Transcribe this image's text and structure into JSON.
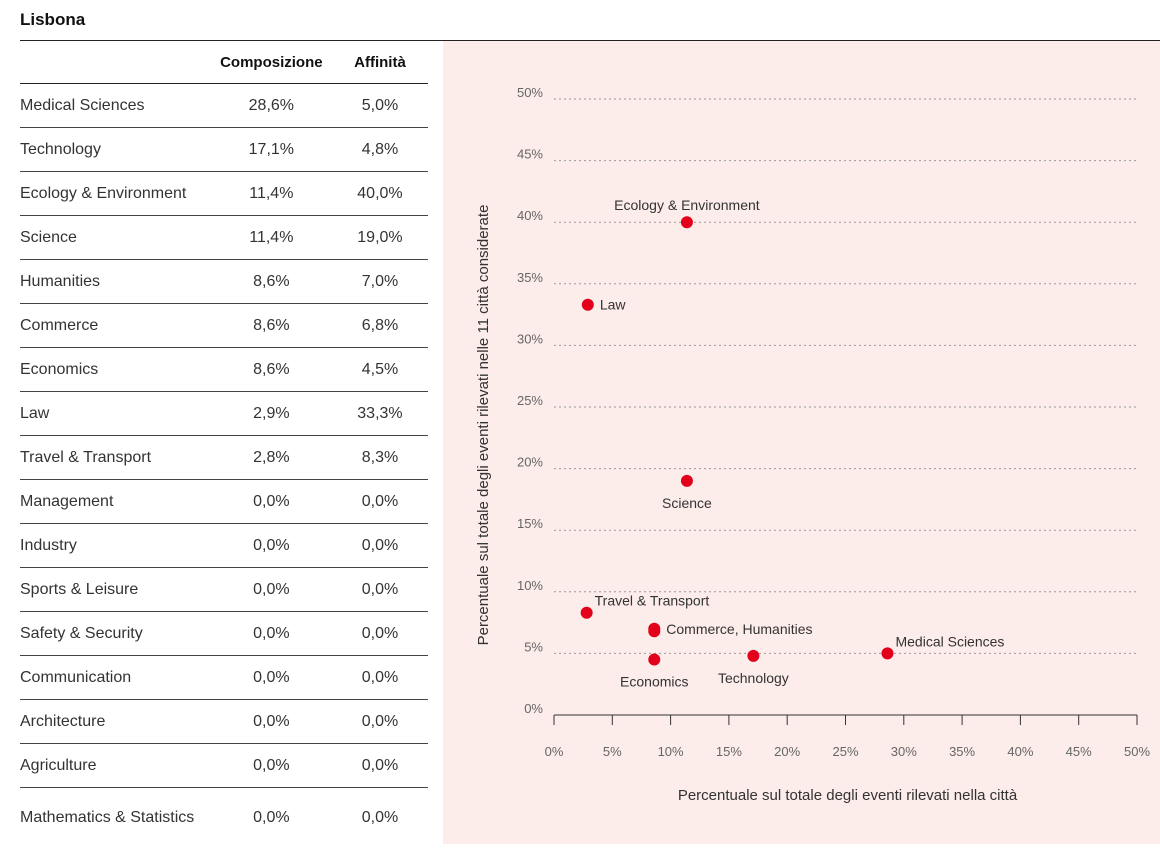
{
  "title": "Lisbona",
  "table": {
    "headers": [
      "",
      "Composizione",
      "Affinità"
    ],
    "rows": [
      {
        "name": "Medical Sciences",
        "composizione": "28,6%",
        "affinita": "5,0%"
      },
      {
        "name": "Technology",
        "composizione": "17,1%",
        "affinita": "4,8%"
      },
      {
        "name": "Ecology & Environment",
        "composizione": "11,4%",
        "affinita": "40,0%"
      },
      {
        "name": "Science",
        "composizione": "11,4%",
        "affinita": "19,0%"
      },
      {
        "name": "Humanities",
        "composizione": "8,6%",
        "affinita": "7,0%"
      },
      {
        "name": "Commerce",
        "composizione": "8,6%",
        "affinita": "6,8%"
      },
      {
        "name": "Economics",
        "composizione": "8,6%",
        "affinita": "4,5%"
      },
      {
        "name": "Law",
        "composizione": "2,9%",
        "affinita": "33,3%"
      },
      {
        "name": "Travel & Transport",
        "composizione": "2,8%",
        "affinita": "8,3%"
      },
      {
        "name": "Management",
        "composizione": "0,0%",
        "affinita": "0,0%"
      },
      {
        "name": "Industry",
        "composizione": "0,0%",
        "affinita": "0,0%"
      },
      {
        "name": "Sports & Leisure",
        "composizione": "0,0%",
        "affinita": "0,0%"
      },
      {
        "name": "Safety & Security",
        "composizione": "0,0%",
        "affinita": "0,0%"
      },
      {
        "name": "Communication",
        "composizione": "0,0%",
        "affinita": "0,0%"
      },
      {
        "name": "Architecture",
        "composizione": "0,0%",
        "affinita": "0,0%"
      },
      {
        "name": "Agriculture",
        "composizione": "0,0%",
        "affinita": "0,0%"
      },
      {
        "name": "Mathematics & Statistics",
        "composizione": "0,0%",
        "affinita": "0,0%"
      }
    ]
  },
  "colors": {
    "point": "#e3001b",
    "panel_bg": "#fcecea",
    "grid": "#999999"
  },
  "chart_data": {
    "type": "scatter",
    "xlabel": "Percentuale sul totale degli eventi rilevati nella città",
    "ylabel": "Percentuale sul totale degli eventi rilevati nelle 11 città considerate",
    "xlim": [
      0,
      50
    ],
    "ylim": [
      0,
      50
    ],
    "xticks": [
      "0%",
      "5%",
      "10%",
      "15%",
      "20%",
      "25%",
      "30%",
      "35%",
      "40%",
      "45%",
      "50%"
    ],
    "yticks": [
      "0%",
      "5%",
      "10%",
      "15%",
      "20%",
      "25%",
      "30%",
      "35%",
      "40%",
      "45%",
      "50%"
    ],
    "grid": "horizontal dotted",
    "points": [
      {
        "label": "Medical Sciences",
        "x": 28.6,
        "y": 5.0,
        "label_pos": "above-right"
      },
      {
        "label": "Technology",
        "x": 17.1,
        "y": 4.8,
        "label_pos": "below"
      },
      {
        "label": "Ecology & Environment",
        "x": 11.4,
        "y": 40.0,
        "label_pos": "above"
      },
      {
        "label": "Science",
        "x": 11.4,
        "y": 19.0,
        "label_pos": "below"
      },
      {
        "label": "Commerce, Humanities",
        "x": 8.6,
        "y": 7.0,
        "label_pos": "right"
      },
      {
        "label": "",
        "x": 8.6,
        "y": 6.8,
        "label_pos": "none"
      },
      {
        "label": "Economics",
        "x": 8.6,
        "y": 4.5,
        "label_pos": "below"
      },
      {
        "label": "Law",
        "x": 2.9,
        "y": 33.3,
        "label_pos": "right"
      },
      {
        "label": "Travel & Transport",
        "x": 2.8,
        "y": 8.3,
        "label_pos": "above-right"
      }
    ]
  }
}
